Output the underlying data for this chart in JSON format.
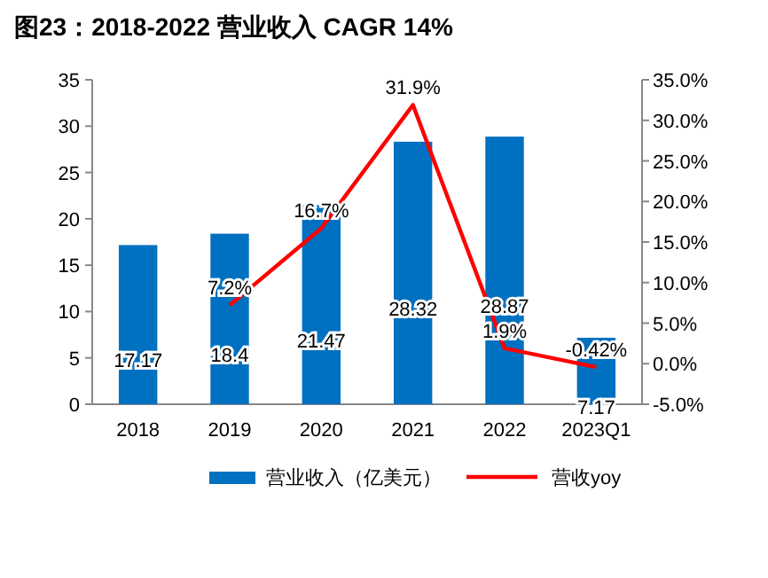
{
  "chart_data": {
    "type": "bar",
    "title": "图23：2018-2022 营业收入 CAGR 14%",
    "categories": [
      "2018",
      "2019",
      "2020",
      "2021",
      "2022",
      "2023Q1"
    ],
    "series": [
      {
        "name": "营业收入（亿美元）",
        "color": "#0070c0",
        "values": [
          17.17,
          18.4,
          21.47,
          28.32,
          28.87,
          7.17
        ],
        "data_labels": true
      },
      {
        "name": "营收yoy",
        "type": "line",
        "axis": "y2",
        "color": "#ff0000",
        "values": [
          null,
          7.2,
          16.7,
          31.9,
          1.9,
          -0.42
        ],
        "value_labels": [
          null,
          "7.2%",
          "16.7%",
          "31.9%",
          "1.9%",
          "-0.42%"
        ]
      }
    ],
    "ylim": [
      0,
      35
    ],
    "yticks": [
      0,
      5,
      10,
      15,
      20,
      25,
      30,
      35
    ],
    "y2lim": [
      -5,
      35
    ],
    "y2ticks": [
      {
        "value": -5,
        "label": "-5.0%"
      },
      {
        "value": 0,
        "label": "0.0%"
      },
      {
        "value": 5,
        "label": "5.0%"
      },
      {
        "value": 10,
        "label": "10.0%"
      },
      {
        "value": 15,
        "label": "15.0%"
      },
      {
        "value": 20,
        "label": "20.0%"
      },
      {
        "value": 25,
        "label": "25.0%"
      },
      {
        "value": 30,
        "label": "30.0%"
      },
      {
        "value": 35,
        "label": "35.0%"
      }
    ],
    "legend": "bottom",
    "grid": false
  }
}
